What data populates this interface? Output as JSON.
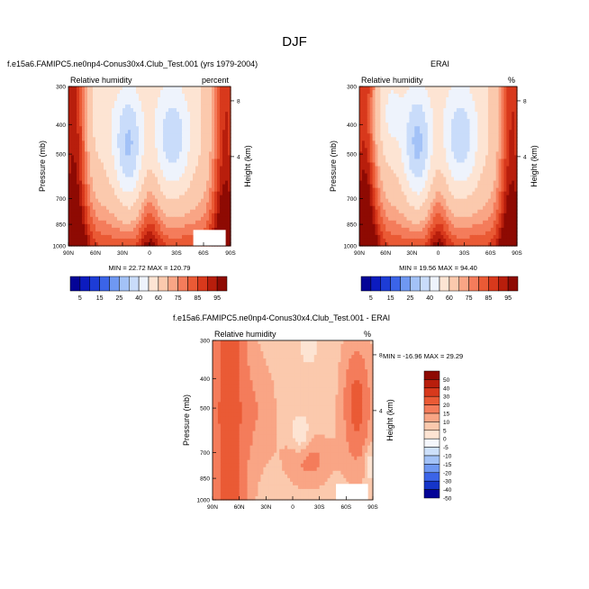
{
  "suptitle": "DJF",
  "colors": {
    "abs_scale": [
      "#040497",
      "#0c1bbf",
      "#1d3cd6",
      "#3b64e8",
      "#6f98f2",
      "#a3c2f7",
      "#c9dcfa",
      "#eef3fc",
      "#fde4d3",
      "#fbc9ad",
      "#f9a585",
      "#f47c5b",
      "#ea5a35",
      "#d8391c",
      "#b81e0c",
      "#8e0a03"
    ],
    "diff_scale": [
      "#040497",
      "#1535c9",
      "#3b64e8",
      "#6f98f2",
      "#a3c2f7",
      "#cde0fa",
      "#f5f7fc",
      "#fde4d3",
      "#fbc9ad",
      "#f9a585",
      "#f47c5b",
      "#ea5a35",
      "#d8391c",
      "#b81e0c",
      "#8e0a03"
    ],
    "missing": "#ffffff"
  },
  "chart_data": [
    {
      "type": "heatmap",
      "title": "f.e15a6.FAMIPC5.ne0np4-Conus30x4.Club_Test.001 (yrs 1979-2004)",
      "left_label": "Relative humidity",
      "right_label": "percent",
      "ylabel": "Pressure (mb)",
      "right_axis_label": "Height (km)",
      "x_ticks": [
        "90N",
        "60N",
        "30N",
        "0",
        "30S",
        "60S",
        "90S"
      ],
      "y_ticks": [
        "300",
        "400",
        "500",
        "700",
        "850",
        "1000"
      ],
      "right_ticks": [
        "8",
        "4"
      ],
      "stats": "MIN = 22.72  MAX = 120.79",
      "min": 22.72,
      "max": 120.79
    },
    {
      "type": "heatmap",
      "title": "ERAI",
      "left_label": "Relative humidity",
      "right_label": "%",
      "ylabel": "Pressure (mb)",
      "right_axis_label": "Height (km)",
      "x_ticks": [
        "90N",
        "60N",
        "30N",
        "0",
        "30S",
        "60S",
        "90S"
      ],
      "y_ticks": [
        "300",
        "400",
        "500",
        "700",
        "850",
        "1000"
      ],
      "right_ticks": [
        "8",
        "4"
      ],
      "stats": "MIN = 19.56  MAX = 94.40",
      "min": 19.56,
      "max": 94.4
    },
    {
      "type": "heatmap",
      "title": "f.e15a6.FAMIPC5.ne0np4-Conus30x4.Club_Test.001 - ERAI",
      "left_label": "Relative humidity",
      "right_label": "%",
      "ylabel": "Pressure (mb)",
      "right_axis_label": "Height (km)",
      "x_ticks": [
        "90N",
        "60N",
        "30N",
        "0",
        "30S",
        "60S",
        "90S"
      ],
      "y_ticks": [
        "300",
        "400",
        "500",
        "700",
        "850",
        "1000"
      ],
      "right_ticks": [
        "8",
        "4"
      ],
      "stats": "MIN = -16.96  MAX =  29.29",
      "min": -16.96,
      "max": 29.29
    }
  ],
  "colorbars": {
    "abs_labels": [
      "5",
      "15",
      "25",
      "40",
      "60",
      "75",
      "85",
      "95"
    ],
    "diff_labels": [
      "50",
      "40",
      "30",
      "20",
      "15",
      "10",
      "5",
      "0",
      "-5",
      "-10",
      "-15",
      "-20",
      "-30",
      "-40",
      "-50"
    ]
  }
}
